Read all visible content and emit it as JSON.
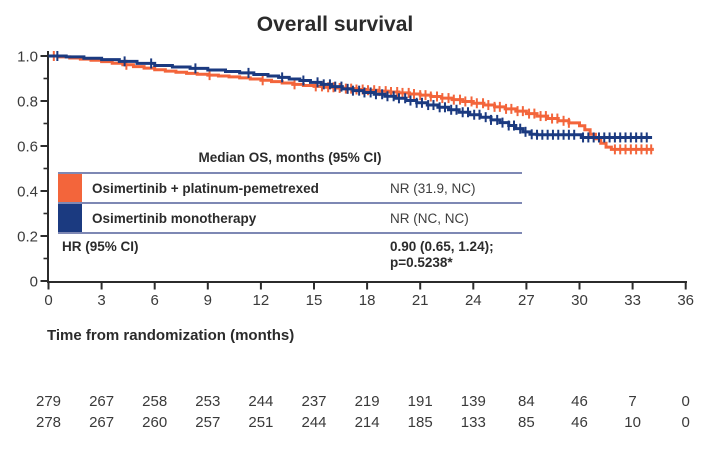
{
  "title": "Overall survival",
  "x_axis": {
    "label": "Time from randomization (months)",
    "ticks": [
      0,
      3,
      6,
      9,
      12,
      15,
      18,
      21,
      24,
      27,
      30,
      33,
      36
    ],
    "range": [
      0,
      36
    ]
  },
  "y_axis": {
    "tick_labels": [
      "1.0",
      "0.8",
      "0.6",
      "0.4",
      "0.2",
      "0"
    ],
    "tick_values": [
      1.0,
      0.8,
      0.6,
      0.4,
      0.2,
      0
    ],
    "minor_tick_values": [
      0.9,
      0.7,
      0.5,
      0.3,
      0.1
    ],
    "range": [
      0,
      1.0
    ]
  },
  "colors": {
    "combo_orange": "#F3653B",
    "mono_blue": "#1B3A80",
    "table_line": "#7E88B4",
    "axis": "#2B2B2B",
    "text_dark": "#2B2B2B",
    "text_gray": "#3A3A3A"
  },
  "inset_table": {
    "header": "Median OS, months (95% CI)",
    "rows": [
      {
        "label": "Osimertinib + platinum-pemetrexed",
        "value": "NR (31.9, NC)",
        "swatch_color": "#F3653B"
      },
      {
        "label": "Osimertinib monotherapy",
        "value": "NR (NC, NC)",
        "swatch_color": "#1B3A80"
      }
    ],
    "hr_label": "HR (95% CI)",
    "hr_value": "0.90 (0.65, 1.24);",
    "hr_pvalue": "p=0.5238*"
  },
  "chart_data": {
    "type": "line",
    "subtype": "kaplan-meier-step",
    "title": "Overall survival",
    "xlabel": "Time from randomization (months)",
    "ylabel": "",
    "xlim": [
      0,
      36
    ],
    "ylim": [
      0,
      1.0
    ],
    "grid": false,
    "legend_position": "inset-table",
    "series": [
      {
        "name": "Osimertinib + platinum-pemetrexed",
        "color": "#F3653B",
        "median_os": "NR (31.9, NC)",
        "points": [
          [
            0,
            1.0
          ],
          [
            0.6,
            0.996
          ],
          [
            1.2,
            0.991
          ],
          [
            1.8,
            0.986
          ],
          [
            2.4,
            0.981
          ],
          [
            3.0,
            0.975
          ],
          [
            3.6,
            0.968
          ],
          [
            4.2,
            0.961
          ],
          [
            4.8,
            0.953
          ],
          [
            5.4,
            0.946
          ],
          [
            6.0,
            0.939
          ],
          [
            6.6,
            0.933
          ],
          [
            7.2,
            0.928
          ],
          [
            7.8,
            0.923
          ],
          [
            8.4,
            0.919
          ],
          [
            9.0,
            0.915
          ],
          [
            9.6,
            0.911
          ],
          [
            10.2,
            0.907
          ],
          [
            10.8,
            0.903
          ],
          [
            11.4,
            0.898
          ],
          [
            12.0,
            0.892
          ],
          [
            12.6,
            0.886
          ],
          [
            13.2,
            0.88
          ],
          [
            13.8,
            0.874
          ],
          [
            14.4,
            0.869
          ],
          [
            15.0,
            0.865
          ],
          [
            15.6,
            0.861
          ],
          [
            16.2,
            0.858
          ],
          [
            16.8,
            0.855
          ],
          [
            17.4,
            0.851
          ],
          [
            18.0,
            0.848
          ],
          [
            18.6,
            0.844
          ],
          [
            19.2,
            0.84
          ],
          [
            19.8,
            0.836
          ],
          [
            20.4,
            0.831
          ],
          [
            21.0,
            0.826
          ],
          [
            21.6,
            0.82
          ],
          [
            22.2,
            0.813
          ],
          [
            22.8,
            0.806
          ],
          [
            23.4,
            0.798
          ],
          [
            24.0,
            0.79
          ],
          [
            24.6,
            0.782
          ],
          [
            25.2,
            0.774
          ],
          [
            25.8,
            0.765
          ],
          [
            26.4,
            0.755
          ],
          [
            27.0,
            0.744
          ],
          [
            27.6,
            0.733
          ],
          [
            28.2,
            0.722
          ],
          [
            28.8,
            0.712
          ],
          [
            29.4,
            0.703
          ],
          [
            30.0,
            0.69
          ],
          [
            30.3,
            0.672
          ],
          [
            30.6,
            0.652
          ],
          [
            30.9,
            0.632
          ],
          [
            31.2,
            0.612
          ],
          [
            31.5,
            0.595
          ],
          [
            31.8,
            0.585
          ],
          [
            34.2,
            0.585
          ]
        ],
        "censor_marks": [
          0.3,
          4.4,
          9.1,
          12.1,
          13.9,
          15.1,
          15.45,
          15.8,
          16.1,
          16.45,
          16.8,
          17.1,
          17.4,
          17.75,
          18.05,
          18.4,
          18.7,
          19.05,
          19.35,
          19.7,
          20.0,
          20.35,
          20.65,
          21.0,
          21.3,
          21.6,
          21.95,
          22.25,
          22.6,
          22.9,
          23.25,
          23.55,
          23.9,
          24.2,
          24.55,
          24.85,
          25.2,
          25.5,
          25.85,
          26.15,
          26.5,
          26.8,
          27.15,
          27.45,
          27.8,
          28.1,
          28.45,
          28.75,
          29.1,
          29.4,
          32.0,
          32.3,
          32.6,
          32.9,
          33.2,
          33.5,
          33.8,
          34.05
        ]
      },
      {
        "name": "Osimertinib monotherapy",
        "color": "#1B3A80",
        "median_os": "NR (NC, NC)",
        "points": [
          [
            0,
            1.0
          ],
          [
            1,
            0.996
          ],
          [
            2,
            0.99
          ],
          [
            3,
            0.984
          ],
          [
            4,
            0.976
          ],
          [
            5,
            0.967
          ],
          [
            6,
            0.958
          ],
          [
            7,
            0.951
          ],
          [
            8,
            0.945
          ],
          [
            9,
            0.938
          ],
          [
            10,
            0.931
          ],
          [
            10.8,
            0.925
          ],
          [
            11.6,
            0.918
          ],
          [
            12.4,
            0.911
          ],
          [
            13.0,
            0.905
          ],
          [
            13.6,
            0.898
          ],
          [
            14.2,
            0.891
          ],
          [
            14.8,
            0.883
          ],
          [
            15.4,
            0.874
          ],
          [
            16.0,
            0.864
          ],
          [
            16.6,
            0.854
          ],
          [
            17.2,
            0.846
          ],
          [
            17.8,
            0.838
          ],
          [
            18.4,
            0.83
          ],
          [
            19.0,
            0.821
          ],
          [
            19.6,
            0.812
          ],
          [
            20.2,
            0.802
          ],
          [
            20.8,
            0.792
          ],
          [
            21.4,
            0.782
          ],
          [
            22.0,
            0.772
          ],
          [
            22.6,
            0.761
          ],
          [
            23.2,
            0.75
          ],
          [
            23.8,
            0.739
          ],
          [
            24.4,
            0.728
          ],
          [
            25.0,
            0.716
          ],
          [
            25.5,
            0.704
          ],
          [
            26.0,
            0.691
          ],
          [
            26.4,
            0.677
          ],
          [
            26.8,
            0.663
          ],
          [
            27.2,
            0.652
          ],
          [
            27.6,
            0.65
          ],
          [
            29.8,
            0.65
          ],
          [
            30.1,
            0.638
          ],
          [
            34.1,
            0.638
          ]
        ],
        "censor_marks": [
          0.5,
          4.3,
          5.8,
          8.3,
          11.3,
          13.2,
          14.4,
          15.2,
          15.55,
          15.9,
          16.2,
          16.55,
          16.9,
          17.2,
          17.55,
          17.85,
          18.2,
          18.5,
          18.85,
          19.15,
          19.5,
          19.8,
          20.15,
          20.45,
          20.8,
          21.1,
          21.45,
          21.75,
          22.1,
          22.4,
          22.75,
          23.05,
          23.4,
          23.7,
          24.05,
          24.35,
          24.7,
          25.0,
          25.35,
          25.65,
          26.0,
          26.3,
          26.65,
          26.95,
          27.3,
          27.6,
          27.9,
          28.2,
          28.5,
          28.8,
          29.1,
          29.4,
          29.7,
          30.2,
          30.5,
          30.8,
          31.1,
          31.4,
          31.7,
          32.0,
          32.3,
          32.6,
          32.9,
          33.2,
          33.5,
          33.8
        ]
      }
    ],
    "hr_annotation": "HR (95% CI) 0.90 (0.65, 1.24); p=0.5238*",
    "risk_table": {
      "time_points": [
        0,
        3,
        6,
        9,
        12,
        15,
        18,
        21,
        24,
        27,
        30,
        33,
        36
      ],
      "rows": [
        {
          "name": "Osimertinib + platinum-pemetrexed",
          "counts": [
            279,
            267,
            258,
            253,
            244,
            237,
            219,
            191,
            139,
            84,
            46,
            7,
            0
          ]
        },
        {
          "name": "Osimertinib monotherapy",
          "counts": [
            278,
            267,
            260,
            257,
            251,
            244,
            214,
            185,
            133,
            85,
            46,
            10,
            0
          ]
        }
      ]
    }
  }
}
